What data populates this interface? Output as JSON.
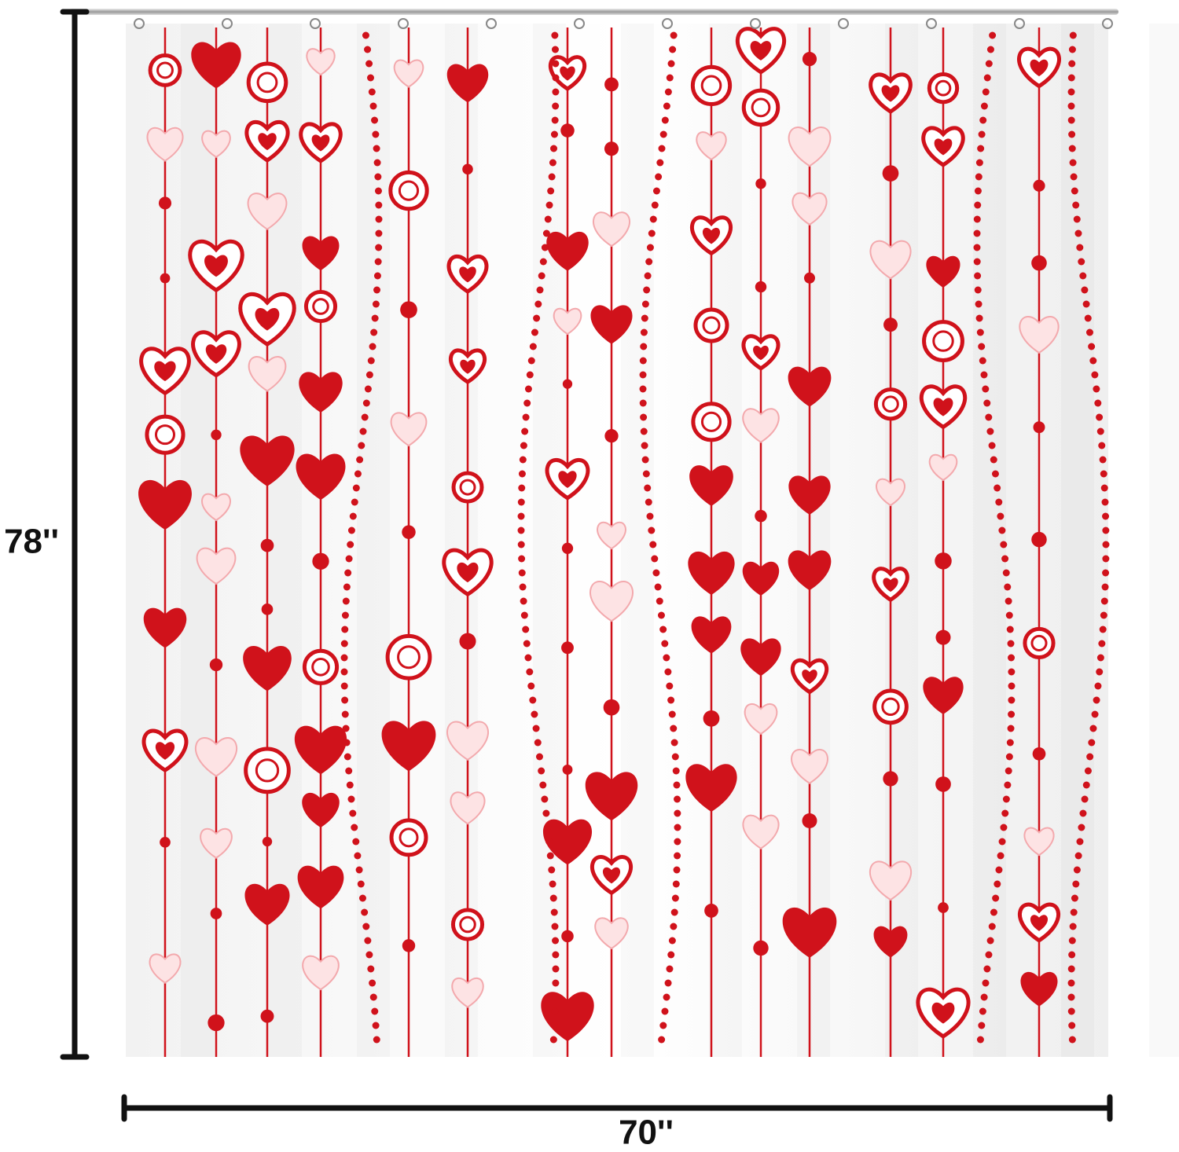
{
  "dimensions": {
    "height": "78''",
    "width": "70''"
  }
}
